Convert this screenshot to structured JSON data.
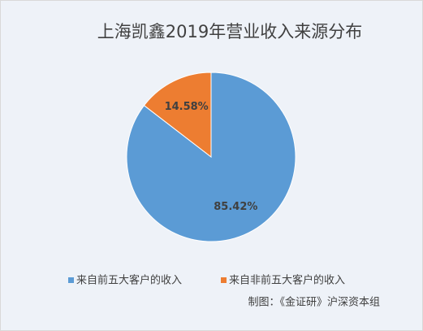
{
  "chart_data": {
    "type": "pie",
    "title": "上海凯鑫2019年营业收入来源分布",
    "categories": [
      "来自前五大客户的收入",
      "来自非前五大客户的收入"
    ],
    "values": [
      85.42,
      14.58
    ],
    "value_labels": [
      "85.42%",
      "14.58%"
    ],
    "colors": [
      "#5b9bd5",
      "#ed7d31"
    ],
    "note": "制图：《金证研》沪深资本组"
  }
}
